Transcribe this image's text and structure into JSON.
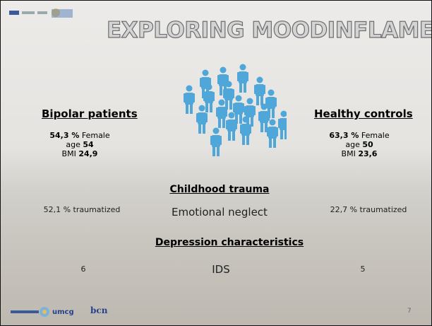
{
  "header": {
    "title": "EXPLORING MOODINFLAME"
  },
  "groups": [
    {
      "title": "Bipolar patients",
      "female_pct": "54,3 %",
      "female_label": "Female",
      "age_label": "age",
      "age": "54",
      "bmi_label": "BMI",
      "bmi": "24,9"
    },
    {
      "title": "Healthy controls",
      "female_pct": "63,3 %",
      "female_label": "Female",
      "age_label": "age",
      "age": "50",
      "bmi_label": "BMI",
      "bmi": "23,6"
    }
  ],
  "sections": [
    {
      "title": "Childhood trauma",
      "left": "52,1 % traumatized",
      "measure": "Emotional neglect",
      "right": "22,7 % traumatized"
    },
    {
      "title": "Depression characteristics",
      "left": "6",
      "measure": "IDS",
      "right": "5"
    }
  ],
  "footer": {
    "logos": [
      "umcg",
      "bcn"
    ],
    "page_number": "7"
  }
}
